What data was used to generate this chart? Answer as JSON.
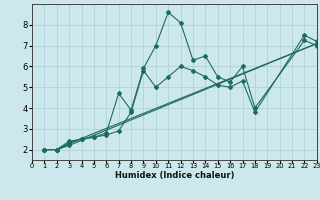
{
  "xlabel": "Humidex (Indice chaleur)",
  "xlim": [
    0,
    23
  ],
  "ylim": [
    1.5,
    9.0
  ],
  "xticks": [
    0,
    1,
    2,
    3,
    4,
    5,
    6,
    7,
    8,
    9,
    10,
    11,
    12,
    13,
    14,
    15,
    16,
    17,
    18,
    19,
    20,
    21,
    22,
    23
  ],
  "yticks": [
    2,
    3,
    4,
    5,
    6,
    7,
    8
  ],
  "bg_color": "#cce8ec",
  "grid_color": "#aacdd4",
  "line_color": "#1e6b5e",
  "line1_x": [
    1,
    2,
    3,
    4,
    5,
    6,
    7,
    8,
    9,
    10,
    11,
    12,
    13,
    14,
    15,
    16,
    17,
    18,
    22,
    23
  ],
  "line1_y": [
    2.0,
    2.0,
    2.4,
    2.5,
    2.6,
    2.8,
    4.7,
    3.9,
    5.9,
    7.0,
    8.6,
    8.1,
    6.3,
    6.5,
    5.5,
    5.25,
    6.0,
    4.0,
    7.25,
    7.0
  ],
  "line2_x": [
    1,
    2,
    3,
    4,
    5,
    6,
    7,
    8,
    9,
    10,
    11,
    12,
    13,
    14,
    15,
    16,
    17,
    18,
    22,
    23
  ],
  "line2_y": [
    2.0,
    2.0,
    2.3,
    2.5,
    2.6,
    2.7,
    2.9,
    3.8,
    5.8,
    5.0,
    5.5,
    6.0,
    5.8,
    5.5,
    5.1,
    5.0,
    5.3,
    3.8,
    7.5,
    7.2
  ],
  "line3_x": [
    1,
    2,
    3,
    23
  ],
  "line3_y": [
    2.0,
    2.0,
    2.3,
    7.1
  ],
  "line4_x": [
    1,
    2,
    3,
    23
  ],
  "line4_y": [
    2.0,
    2.0,
    2.2,
    7.1
  ]
}
